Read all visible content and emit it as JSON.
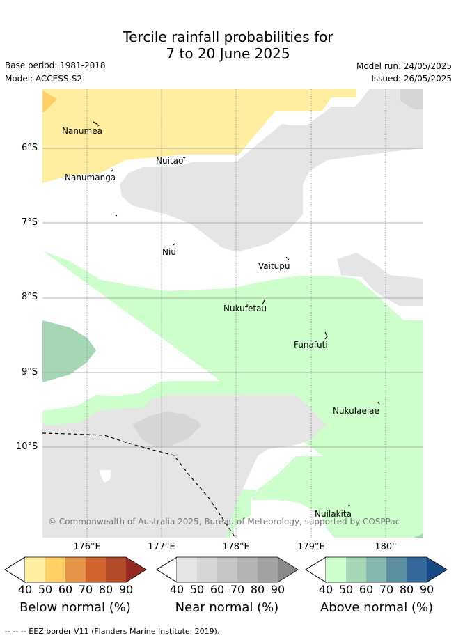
{
  "title_line1": "Tercile rainfall probabilities for",
  "title_line2": "7 to 20 June 2025",
  "base_period": "Base period: 1981-2018",
  "model": "Model: ACCESS-S2",
  "model_run": "Model run: 24/05/2025",
  "issued": "Issued: 26/05/2025",
  "lat_ticks": [
    "6°S",
    "7°S",
    "8°S",
    "9°S",
    "10°S"
  ],
  "lon_ticks": [
    "176°E",
    "177°E",
    "178°E",
    "179°E",
    "180°"
  ],
  "places": [
    "Nanumea",
    "Nanumanga",
    "Nuitao",
    "Niu",
    "Vaitupu",
    "Nukufetau",
    "Funafuti",
    "Nukulaelae",
    "Nuilakita"
  ],
  "credit": "© Commonwealth of Australia 2025, Bureau of Meteorology, supported by COSPPac",
  "colorbars": [
    {
      "label": "Below normal (%)",
      "ticks": [
        "40",
        "50",
        "60",
        "70",
        "80",
        "90"
      ],
      "colors": [
        "#ffeea0",
        "#ffcf66",
        "#e39447",
        "#d2652f",
        "#b34a28",
        "#962a22"
      ]
    },
    {
      "label": "Near normal (%)",
      "ticks": [
        "40",
        "50",
        "60",
        "70",
        "80",
        "90"
      ],
      "colors": [
        "#e5e5e5",
        "#d6d6d6",
        "#c5c5c5",
        "#b4b4b4",
        "#a2a2a2",
        "#8a8a8a"
      ]
    },
    {
      "label": "Above normal (%)",
      "ticks": [
        "40",
        "50",
        "60",
        "70",
        "80",
        "90"
      ],
      "colors": [
        "#ccffcc",
        "#a5d7b5",
        "#83b9b0",
        "#5b8fa0",
        "#36689b",
        "#174a85"
      ]
    }
  ],
  "footnote": "--  --  -- EEZ border V11 (Flanders Marine Institute, 2019)."
}
